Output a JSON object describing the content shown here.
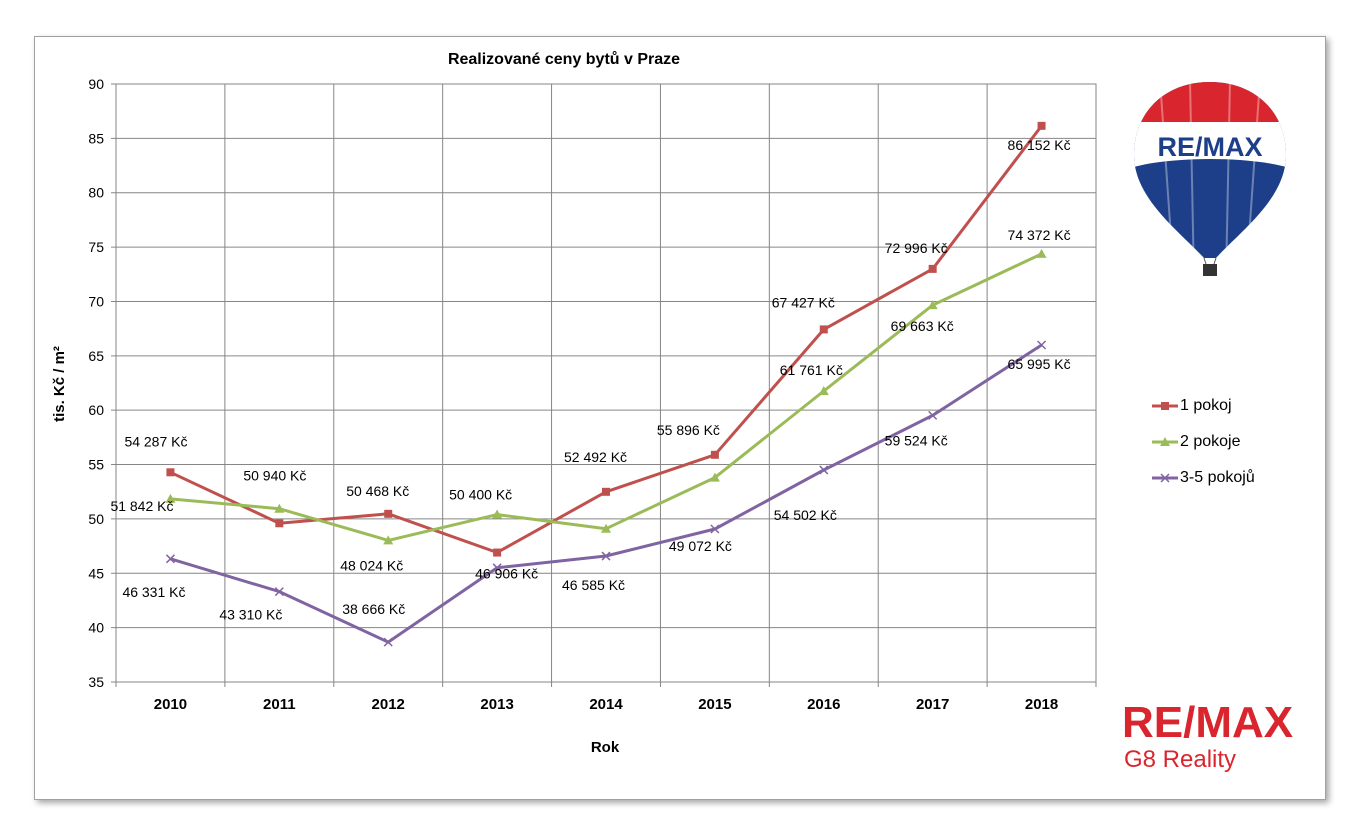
{
  "chart_data": {
    "type": "line",
    "title": "Realizované ceny bytů v Praze",
    "xlabel": "Rok",
    "ylabel": "tis. Kč / m²",
    "x": [
      "2010",
      "2011",
      "2012",
      "2013",
      "2014",
      "2015",
      "2016",
      "2017",
      "2018"
    ],
    "ylim": [
      35,
      90
    ],
    "yticks": [
      35,
      40,
      45,
      50,
      55,
      60,
      65,
      70,
      75,
      80,
      85,
      90
    ],
    "grid": true,
    "legend_position": "right",
    "series": [
      {
        "name": "1 pokoj",
        "color": "#c0504d",
        "marker": "square",
        "values": [
          54.287,
          49.6,
          50.468,
          46.906,
          52.492,
          55.896,
          67.427,
          72.996,
          86.152
        ],
        "labels": [
          "54 287 Kč",
          "",
          "50 468 Kč",
          "46 906 Kč",
          "52 492 Kč",
          "55 896 Kč",
          "67 427 Kč",
          "72 996 Kč",
          "86 152 Kč"
        ]
      },
      {
        "name": "2 pokoje",
        "color": "#9bbb59",
        "marker": "triangle",
        "values": [
          51.842,
          50.94,
          48.024,
          50.4,
          49.1,
          53.8,
          61.761,
          69.663,
          74.372
        ],
        "labels": [
          "51 842 Kč",
          "50 940 Kč",
          "48 024 Kč",
          "50 400 Kč",
          "",
          "",
          "61 761 Kč",
          "69 663 Kč",
          "74 372 Kč"
        ]
      },
      {
        "name": "3-5 pokojů",
        "color": "#8064a2",
        "marker": "x",
        "values": [
          46.331,
          43.31,
          38.666,
          45.5,
          46.585,
          49.072,
          54.502,
          59.524,
          65.995
        ],
        "labels": [
          "46 331 Kč",
          "43 310 Kč",
          "38 666 Kč",
          "",
          "46 585 Kč",
          "49 072 Kč",
          "54 502 Kč",
          "59 524 Kč",
          "65 995 Kč"
        ]
      }
    ]
  },
  "branding": {
    "balloon_text": "RE/MAX",
    "logo_main": "RE/MAX",
    "logo_sub": "G8 Reality",
    "brand_red": "#d9262e",
    "brand_blue": "#1d3f8a"
  }
}
